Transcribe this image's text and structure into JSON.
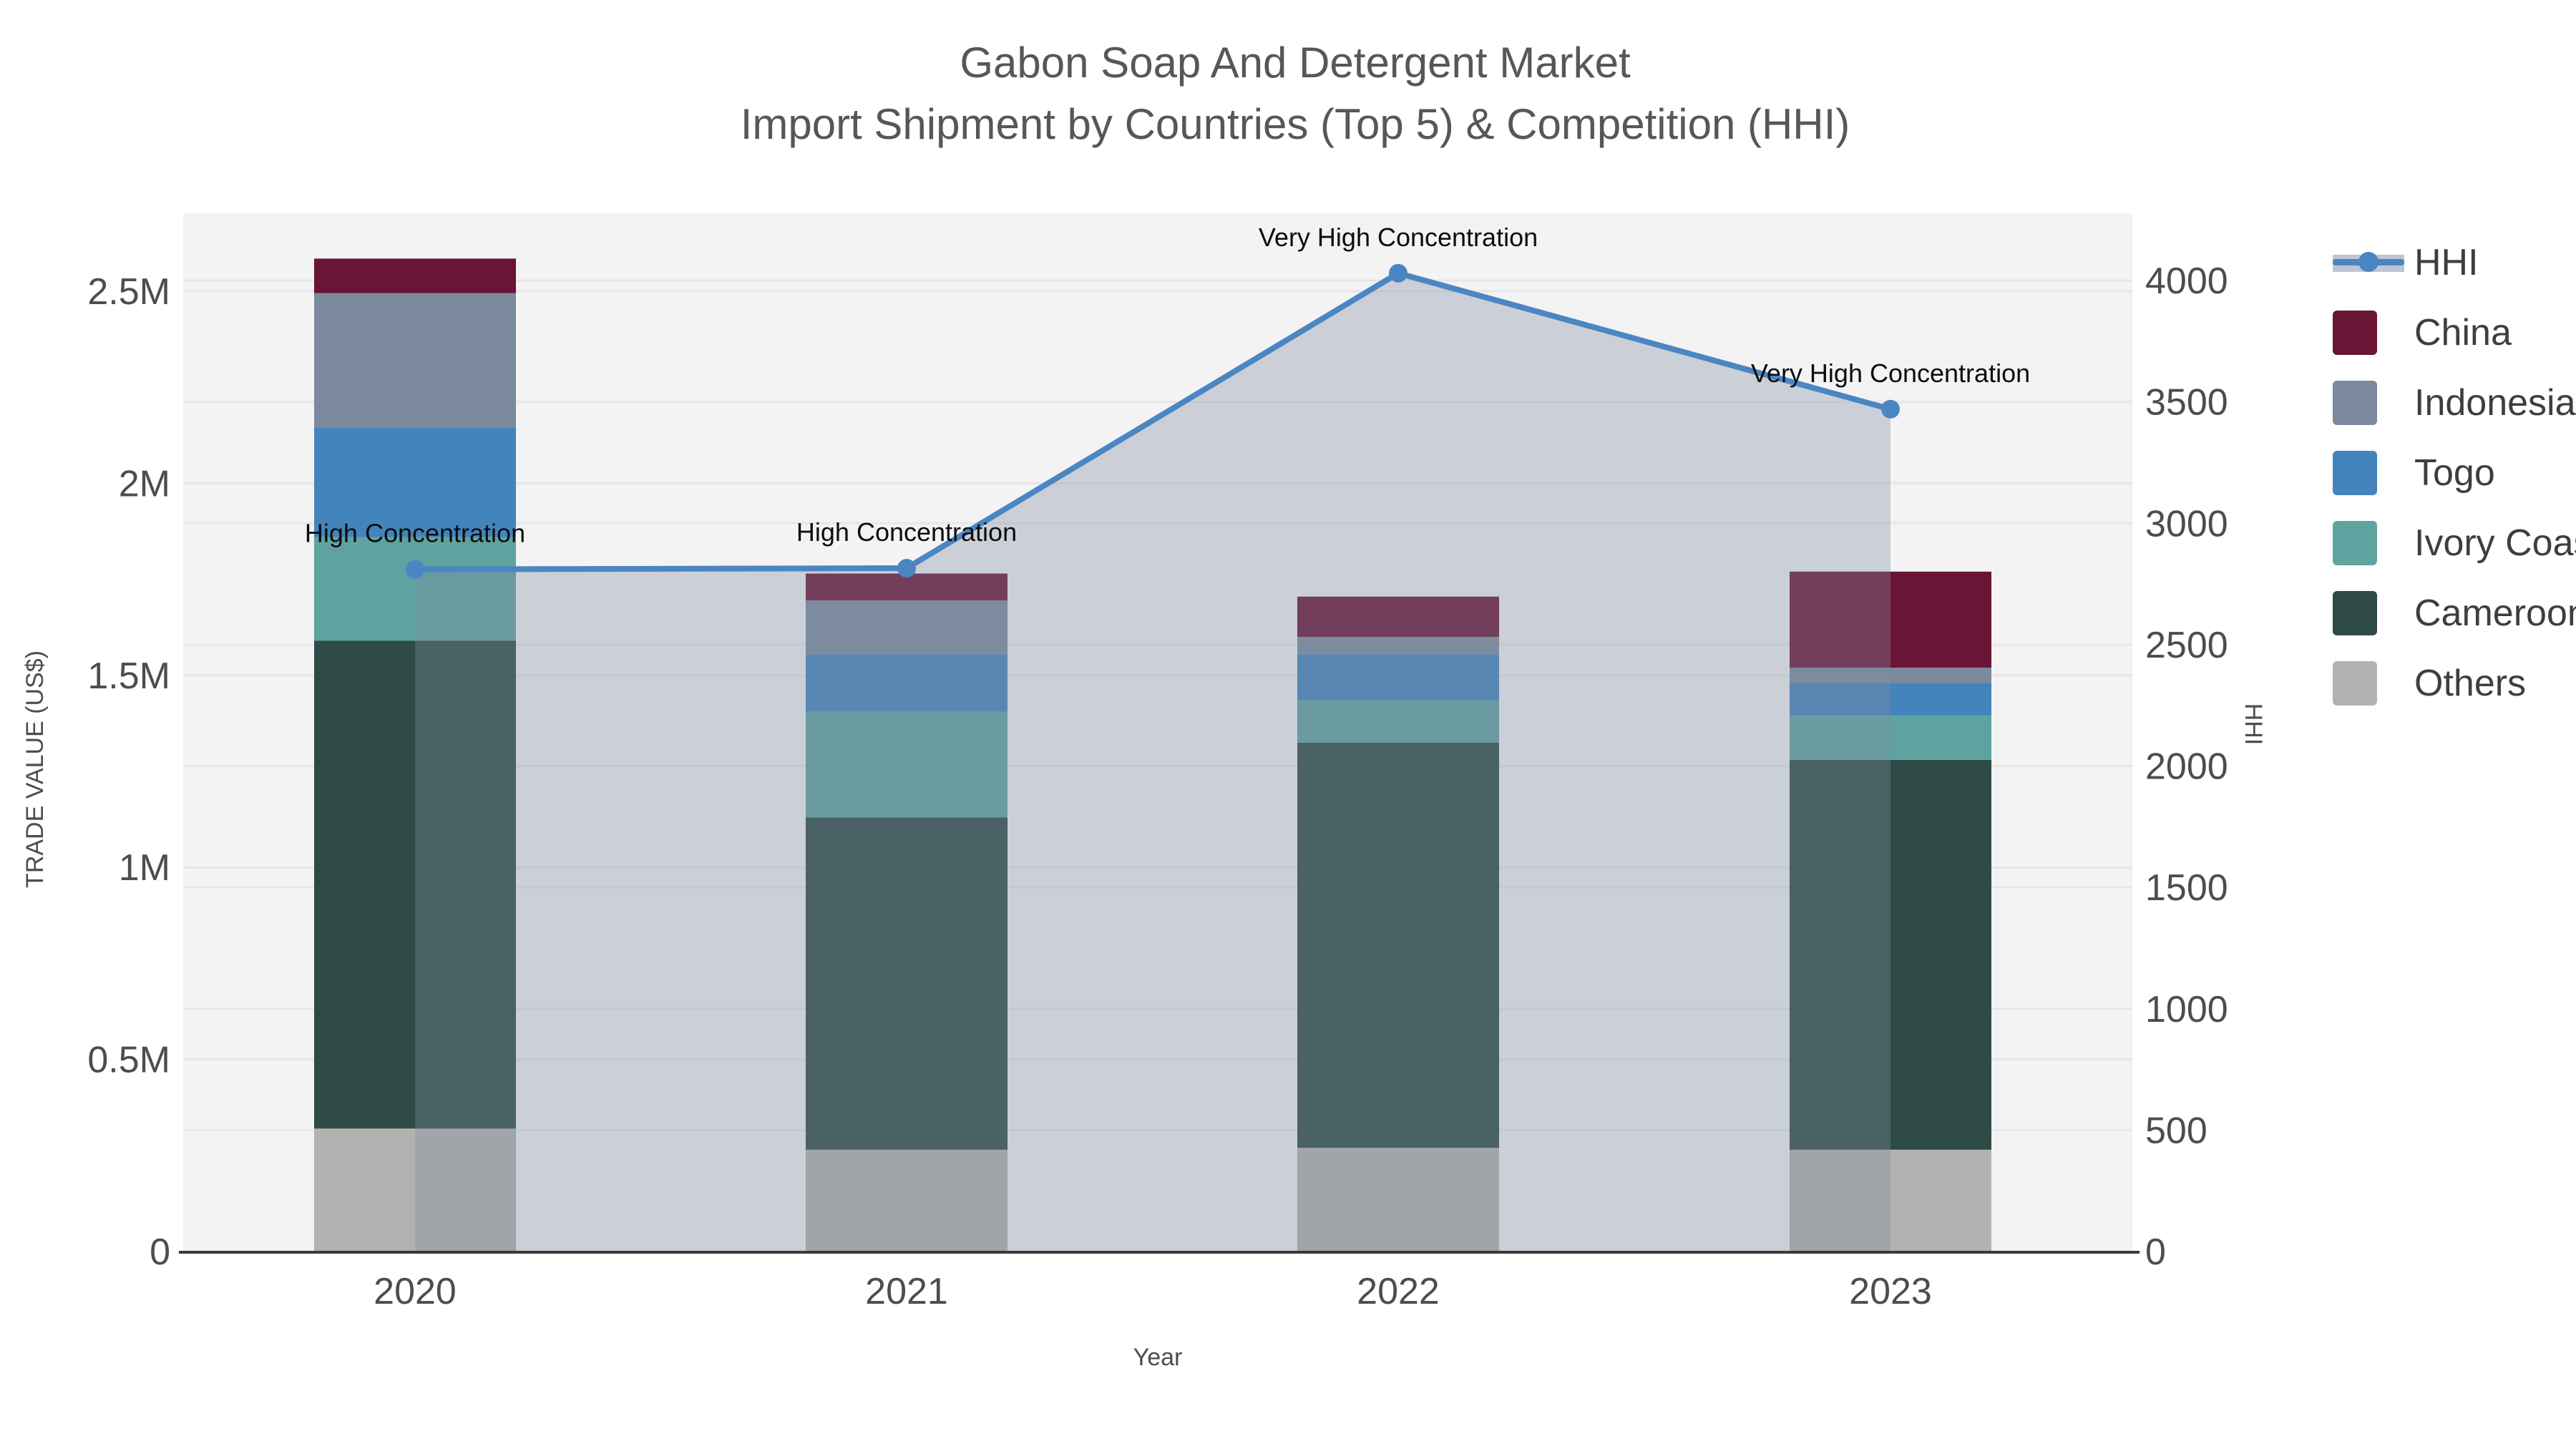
{
  "title": {
    "line1": "Gabon Soap And Detergent Market",
    "line2": "Import Shipment by Countries (Top 5) & Competition (HHI)"
  },
  "chart_data": {
    "type": "bar",
    "subtype": "stacked-bars-with-hhi-line-and-area",
    "categories": [
      "2020",
      "2021",
      "2022",
      "2023"
    ],
    "series": [
      {
        "name": "Others",
        "color": "#b2b2b0",
        "values": [
          320000,
          265000,
          270000,
          265000
        ]
      },
      {
        "name": "Cameroon",
        "color": "#2d4a46",
        "values": [
          1270000,
          865000,
          1055000,
          1015000
        ]
      },
      {
        "name": "Ivory Coast",
        "color": "#5fa3a0",
        "values": [
          270000,
          275000,
          110000,
          115000
        ]
      },
      {
        "name": "Togo",
        "color": "#4384bd",
        "values": [
          285000,
          150000,
          120000,
          85000
        ]
      },
      {
        "name": "Indonesia",
        "color": "#7b8a9d",
        "values": [
          350000,
          140000,
          45000,
          40000
        ]
      },
      {
        "name": "China",
        "color": "#6a1536",
        "values": [
          90000,
          70000,
          105000,
          250000
        ]
      }
    ],
    "line_series": {
      "name": "HHI",
      "color": "#4a86c2",
      "area_fill": "rgba(130,140,160,0.35)",
      "values": [
        2810,
        2815,
        4030,
        3470
      ]
    },
    "annotations": [
      "High Concentration",
      "High Concentration",
      "Very High Concentration",
      "Very High Concentration"
    ],
    "left_axis": {
      "title": "TRADE VALUE (US$)",
      "ticks": [
        {
          "label": "0",
          "value": 0
        },
        {
          "label": "0.5M",
          "value": 500000
        },
        {
          "label": "1M",
          "value": 1000000
        },
        {
          "label": "1.5M",
          "value": 1500000
        },
        {
          "label": "2M",
          "value": 2000000
        },
        {
          "label": "2.5M",
          "value": 2500000
        }
      ],
      "max_value": 2500000
    },
    "right_axis": {
      "title": "HHI",
      "ticks": [
        0,
        500,
        1000,
        1500,
        2000,
        2500,
        3000,
        3500,
        4000
      ],
      "max_value": 4000
    },
    "x_axis": {
      "title": "Year"
    },
    "plot_background": "#f3f3f4",
    "gridline_color": "#e7e7ea",
    "axis_line_color": "#3a3a3a"
  },
  "legend": {
    "items": [
      {
        "label": "HHI",
        "type": "line",
        "color": "#4a86c2"
      },
      {
        "label": "China",
        "type": "swatch",
        "color": "#6a1536"
      },
      {
        "label": "Indonesia",
        "type": "swatch",
        "color": "#7b8a9d"
      },
      {
        "label": "Togo",
        "type": "swatch",
        "color": "#4384bd"
      },
      {
        "label": "Ivory Coast",
        "type": "swatch",
        "color": "#5fa3a0"
      },
      {
        "label": "Cameroon",
        "type": "swatch",
        "color": "#2d4a46"
      },
      {
        "label": "Others",
        "type": "swatch",
        "color": "#b2b2b0"
      }
    ]
  }
}
